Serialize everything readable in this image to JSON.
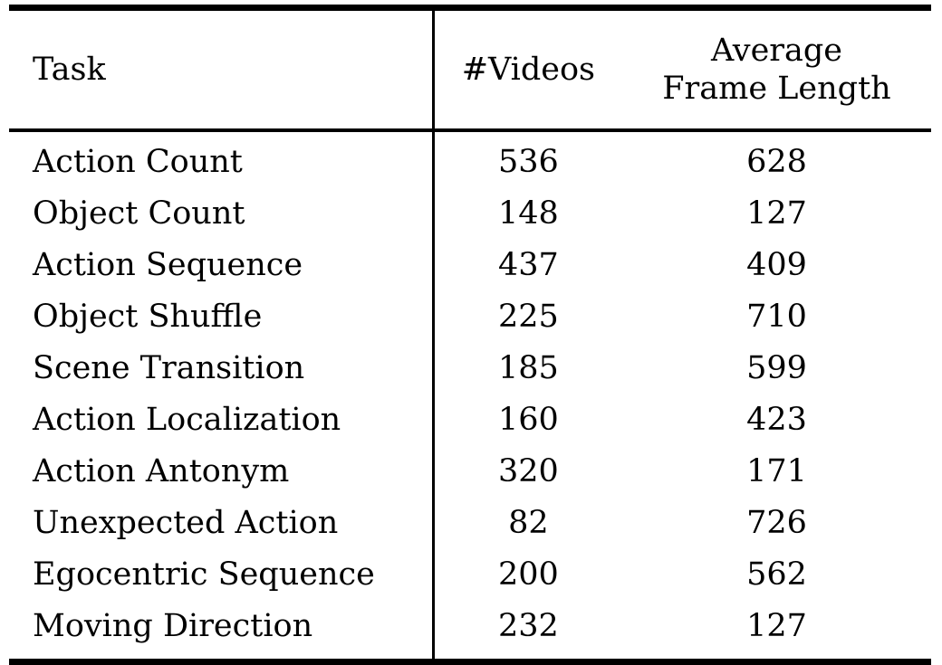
{
  "colors": {
    "text": "#000000",
    "background": "#ffffff",
    "rule": "#000000"
  },
  "table": {
    "columns": [
      {
        "label": "Task"
      },
      {
        "label": "#Videos"
      },
      {
        "label": "Average Frame Length",
        "line1": "Average",
        "line2": "Frame Length"
      }
    ],
    "rows": [
      {
        "task": "Action Count",
        "videos": 536,
        "avg_frame_length": 628
      },
      {
        "task": "Object Count",
        "videos": 148,
        "avg_frame_length": 127
      },
      {
        "task": "Action Sequence",
        "videos": 437,
        "avg_frame_length": 409
      },
      {
        "task": "Object Shuffle",
        "videos": 225,
        "avg_frame_length": 710
      },
      {
        "task": "Scene Transition",
        "videos": 185,
        "avg_frame_length": 599
      },
      {
        "task": "Action Localization",
        "videos": 160,
        "avg_frame_length": 423
      },
      {
        "task": "Action Antonym",
        "videos": 320,
        "avg_frame_length": 171
      },
      {
        "task": "Unexpected Action",
        "videos": 82,
        "avg_frame_length": 726
      },
      {
        "task": "Egocentric Sequence",
        "videos": 200,
        "avg_frame_length": 562
      },
      {
        "task": "Moving Direction",
        "videos": 232,
        "avg_frame_length": 127
      }
    ]
  }
}
